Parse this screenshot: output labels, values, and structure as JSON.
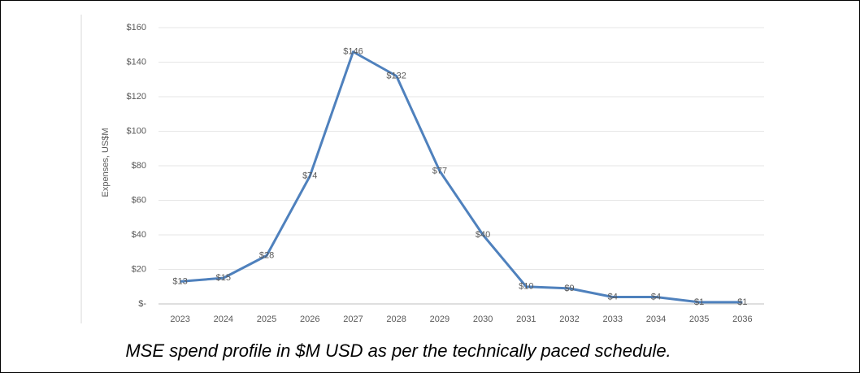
{
  "chart_data": {
    "type": "line",
    "y_label": "Expenses, US$M",
    "caption": "MSE spend profile in $M USD as per the technically paced schedule.",
    "categories": [
      "2023",
      "2024",
      "2025",
      "2026",
      "2027",
      "2028",
      "2029",
      "2030",
      "2031",
      "2032",
      "2033",
      "2034",
      "2035",
      "2036"
    ],
    "series": [
      {
        "name": "Expenses",
        "color": "#4f81bd",
        "values": [
          13,
          15,
          28,
          74,
          146,
          132,
          77,
          40,
          10,
          9,
          4,
          4,
          1,
          1
        ],
        "value_labels": [
          "$13",
          "$15",
          "$28",
          "$74",
          "$146",
          "$132",
          "$77",
          "$40",
          "$10",
          "$9",
          "$4",
          "$4",
          "$1",
          "$1"
        ]
      }
    ],
    "ylim": [
      0,
      160
    ],
    "yticks": [
      {
        "value": 0,
        "label": "$-"
      },
      {
        "value": 20,
        "label": "$20"
      },
      {
        "value": 40,
        "label": "$40"
      },
      {
        "value": 60,
        "label": "$60"
      },
      {
        "value": 80,
        "label": "$80"
      },
      {
        "value": 100,
        "label": "$100"
      },
      {
        "value": 120,
        "label": "$120"
      },
      {
        "value": 140,
        "label": "$140"
      },
      {
        "value": 160,
        "label": "$160"
      }
    ],
    "grid": true
  }
}
